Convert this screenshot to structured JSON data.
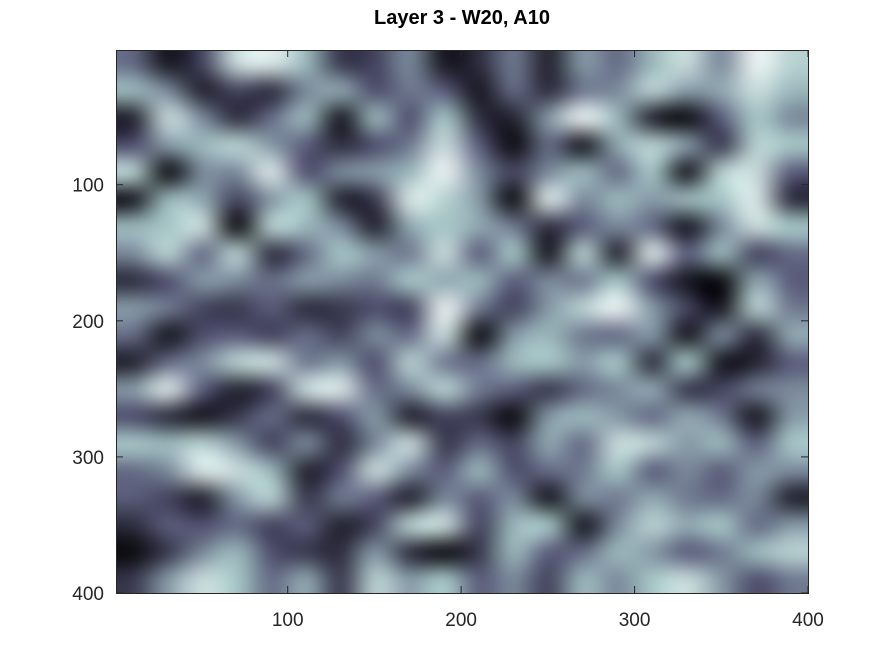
{
  "chart_data": {
    "type": "heatmap",
    "title": "Layer 3 - W20, A10",
    "xlabel": "",
    "ylabel": "",
    "xlim": [
      1,
      400
    ],
    "ylim": [
      1,
      400
    ],
    "y_reversed": true,
    "colormap": "bone",
    "colormap_stops": [
      "#000000",
      "#545474",
      "#a7c7c7",
      "#ffffff"
    ],
    "xticks": [
      {
        "value": 100,
        "label": "100"
      },
      {
        "value": 200,
        "label": "200"
      },
      {
        "value": 300,
        "label": "300"
      },
      {
        "value": 400,
        "label": "400"
      }
    ],
    "yticks": [
      {
        "value": 100,
        "label": "100"
      },
      {
        "value": 200,
        "label": "200"
      },
      {
        "value": 300,
        "label": "300"
      },
      {
        "value": 400,
        "label": "400"
      }
    ],
    "grid_note": "20 x 20 grid of cell values in [0,1], rows top to bottom, columns left to right",
    "grid": [
      [
        0.45,
        0.1,
        0.3,
        0.85,
        0.9,
        0.7,
        0.25,
        0.3,
        0.55,
        0.1,
        0.2,
        0.5,
        0.15,
        0.6,
        0.45,
        0.7,
        0.85,
        0.55,
        0.95,
        0.8
      ],
      [
        0.7,
        0.55,
        0.15,
        0.3,
        0.2,
        0.55,
        0.65,
        0.35,
        0.5,
        0.4,
        0.1,
        0.45,
        0.2,
        0.5,
        0.55,
        0.8,
        0.6,
        0.65,
        0.85,
        0.7
      ],
      [
        0.15,
        0.85,
        0.55,
        0.2,
        0.45,
        0.7,
        0.1,
        0.7,
        0.35,
        0.75,
        0.2,
        0.15,
        0.6,
        0.95,
        0.7,
        0.15,
        0.05,
        0.4,
        0.75,
        0.55
      ],
      [
        0.35,
        0.6,
        0.7,
        0.8,
        0.6,
        0.4,
        0.2,
        0.35,
        0.5,
        0.85,
        0.4,
        0.05,
        0.45,
        0.1,
        0.65,
        0.8,
        0.6,
        0.25,
        0.8,
        0.75
      ],
      [
        0.8,
        0.05,
        0.55,
        0.55,
        0.9,
        0.35,
        0.55,
        0.6,
        0.7,
        0.95,
        0.55,
        0.3,
        0.55,
        0.7,
        0.45,
        0.75,
        0.1,
        0.8,
        0.85,
        0.4
      ],
      [
        0.1,
        0.7,
        0.65,
        0.3,
        0.6,
        0.75,
        0.15,
        0.25,
        0.9,
        0.8,
        0.6,
        0.05,
        0.9,
        0.55,
        0.7,
        0.6,
        0.7,
        0.75,
        0.9,
        0.2
      ],
      [
        0.7,
        0.75,
        0.85,
        0.05,
        0.8,
        0.7,
        0.55,
        0.15,
        0.65,
        0.75,
        0.65,
        0.5,
        0.2,
        0.4,
        0.55,
        0.45,
        0.1,
        0.55,
        0.85,
        0.75
      ],
      [
        0.55,
        0.8,
        0.45,
        0.8,
        0.2,
        0.45,
        0.75,
        0.6,
        0.5,
        0.85,
        0.4,
        0.75,
        0.1,
        0.8,
        0.15,
        0.9,
        0.4,
        0.7,
        0.3,
        0.45
      ],
      [
        0.2,
        0.35,
        0.6,
        0.55,
        0.45,
        0.6,
        0.55,
        0.5,
        0.75,
        0.65,
        0.7,
        0.4,
        0.55,
        0.5,
        0.75,
        0.35,
        0.1,
        0.05,
        0.65,
        0.4
      ],
      [
        0.6,
        0.5,
        0.3,
        0.25,
        0.4,
        0.2,
        0.25,
        0.35,
        0.3,
        0.95,
        0.5,
        0.3,
        0.6,
        0.8,
        0.95,
        0.6,
        0.3,
        0.1,
        0.8,
        0.5
      ],
      [
        0.45,
        0.1,
        0.35,
        0.4,
        0.3,
        0.45,
        0.3,
        0.55,
        0.45,
        0.85,
        0.05,
        0.6,
        0.7,
        0.5,
        0.45,
        0.6,
        0.1,
        0.55,
        0.2,
        0.65
      ],
      [
        0.15,
        0.45,
        0.55,
        0.8,
        0.85,
        0.5,
        0.6,
        0.35,
        0.8,
        0.5,
        0.45,
        0.7,
        0.75,
        0.6,
        0.75,
        0.2,
        0.75,
        0.1,
        0.15,
        0.4
      ],
      [
        0.6,
        0.9,
        0.4,
        0.15,
        0.3,
        0.85,
        0.9,
        0.45,
        0.55,
        0.8,
        0.5,
        0.4,
        0.25,
        0.45,
        0.55,
        0.65,
        0.25,
        0.3,
        0.5,
        0.55
      ],
      [
        0.35,
        0.2,
        0.1,
        0.25,
        0.45,
        0.2,
        0.35,
        0.6,
        0.15,
        0.3,
        0.25,
        0.05,
        0.6,
        0.7,
        0.6,
        0.45,
        0.65,
        0.5,
        0.1,
        0.6
      ],
      [
        0.75,
        0.7,
        0.8,
        0.6,
        0.3,
        0.55,
        0.2,
        0.55,
        0.85,
        0.25,
        0.45,
        0.3,
        0.65,
        0.45,
        0.85,
        0.8,
        0.6,
        0.7,
        0.4,
        0.75
      ],
      [
        0.45,
        0.55,
        0.9,
        0.85,
        0.7,
        0.15,
        0.35,
        0.85,
        0.55,
        0.4,
        0.7,
        0.35,
        0.45,
        0.5,
        0.75,
        0.4,
        0.55,
        0.4,
        0.6,
        0.55
      ],
      [
        0.4,
        0.3,
        0.15,
        0.6,
        0.8,
        0.25,
        0.5,
        0.4,
        0.15,
        0.55,
        0.4,
        0.55,
        0.1,
        0.55,
        0.5,
        0.65,
        0.5,
        0.45,
        0.55,
        0.15
      ],
      [
        0.2,
        0.4,
        0.35,
        0.45,
        0.3,
        0.4,
        0.15,
        0.3,
        0.8,
        0.85,
        0.3,
        0.7,
        0.75,
        0.1,
        0.55,
        0.8,
        0.65,
        0.75,
        0.45,
        0.6
      ],
      [
        0.05,
        0.25,
        0.55,
        0.7,
        0.35,
        0.25,
        0.2,
        0.6,
        0.2,
        0.05,
        0.25,
        0.7,
        0.4,
        0.45,
        0.7,
        0.6,
        0.4,
        0.5,
        0.7,
        0.8
      ],
      [
        0.25,
        0.6,
        0.85,
        0.75,
        0.45,
        0.65,
        0.25,
        0.8,
        0.6,
        0.75,
        0.4,
        0.55,
        0.3,
        0.7,
        0.55,
        0.75,
        0.85,
        0.6,
        0.35,
        0.5
      ]
    ]
  }
}
